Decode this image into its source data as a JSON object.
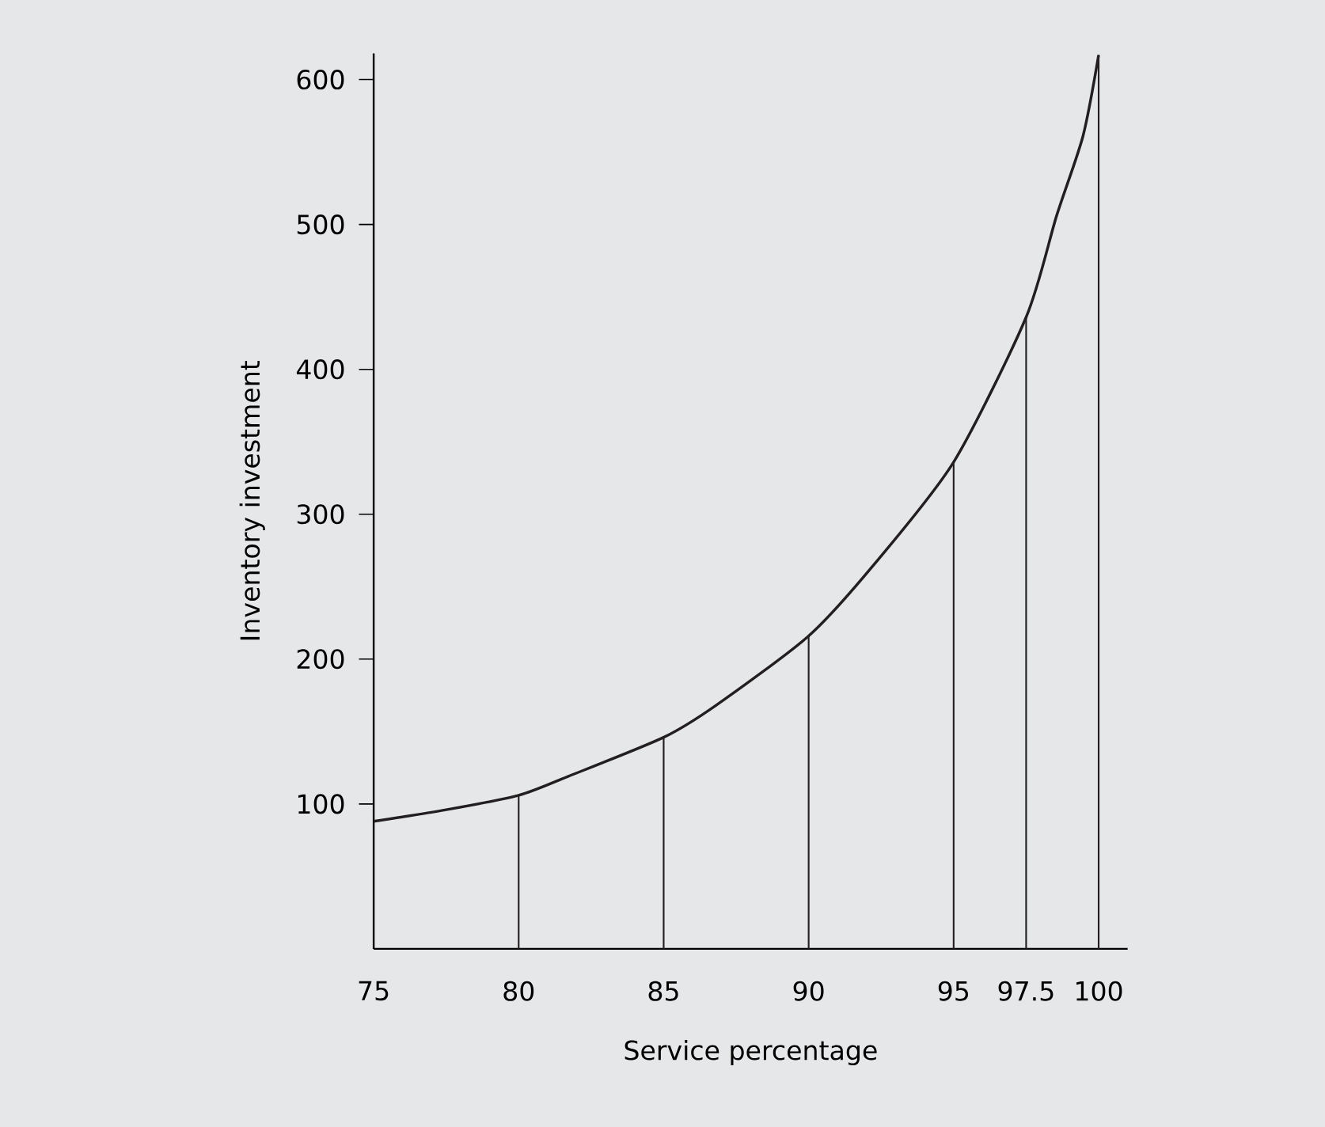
{
  "chart_data": {
    "type": "line",
    "xlabel": "Service percentage",
    "ylabel": "Inventory investment",
    "xlim": [
      75,
      101
    ],
    "ylim": [
      0,
      618
    ],
    "xticks": [
      75,
      80,
      85,
      90,
      95,
      97.5,
      100
    ],
    "yticks": [
      100,
      200,
      300,
      400,
      500,
      600
    ],
    "grid": false,
    "marker": "none",
    "line_style": "solid",
    "series": [
      {
        "color": "#231f20",
        "x": [
          75,
          77.5,
          80,
          81.7,
          85,
          86.8,
          90,
          92.2,
          95,
          97.5,
          98.55,
          99.46,
          100
        ],
        "values": [
          88,
          96,
          106,
          119,
          146,
          168,
          216,
          264,
          336,
          436,
          506,
          561,
          617
        ]
      },
      {
        "type": "bar",
        "color": "#231f20",
        "x": [
          80,
          85,
          90,
          95,
          97.5,
          100
        ],
        "values": [
          106,
          146,
          216,
          336,
          436,
          617
        ]
      }
    ]
  }
}
